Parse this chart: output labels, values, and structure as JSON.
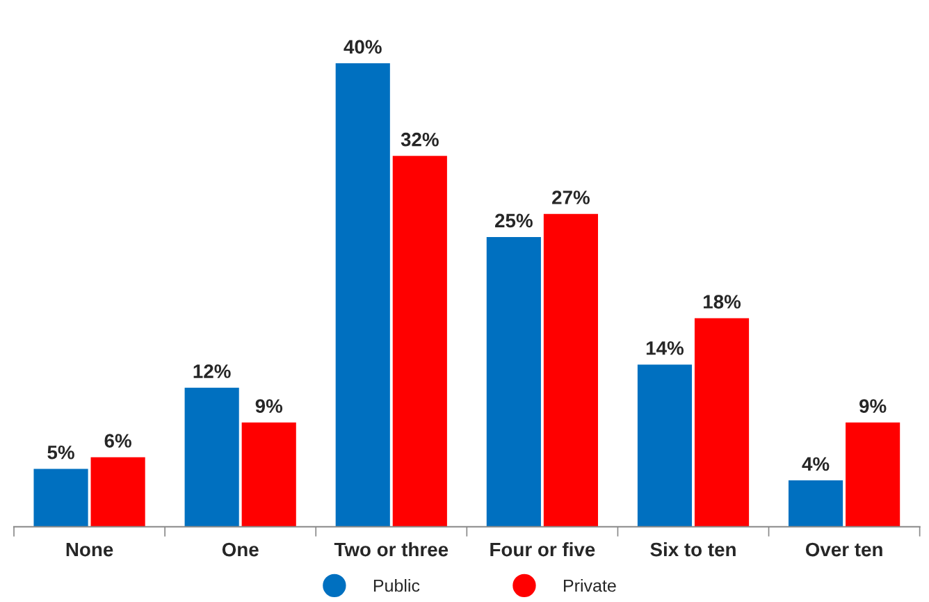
{
  "chart_data": {
    "type": "bar",
    "categories": [
      "None",
      "One",
      "Two or three",
      "Four or five",
      "Six to ten",
      "Over ten"
    ],
    "series": [
      {
        "name": "Public",
        "color": "#0070c0",
        "values": [
          5,
          12,
          40,
          25,
          14,
          4
        ],
        "value_labels": [
          "5%",
          "12%",
          "40%",
          "25%",
          "14%",
          "4%"
        ]
      },
      {
        "name": "Private",
        "color": "#ff0000",
        "values": [
          6,
          9,
          32,
          27,
          18,
          9
        ],
        "value_labels": [
          "6%",
          "9%",
          "32%",
          "27%",
          "18%",
          "9%"
        ]
      }
    ],
    "legend": "bottom",
    "grid": false
  }
}
